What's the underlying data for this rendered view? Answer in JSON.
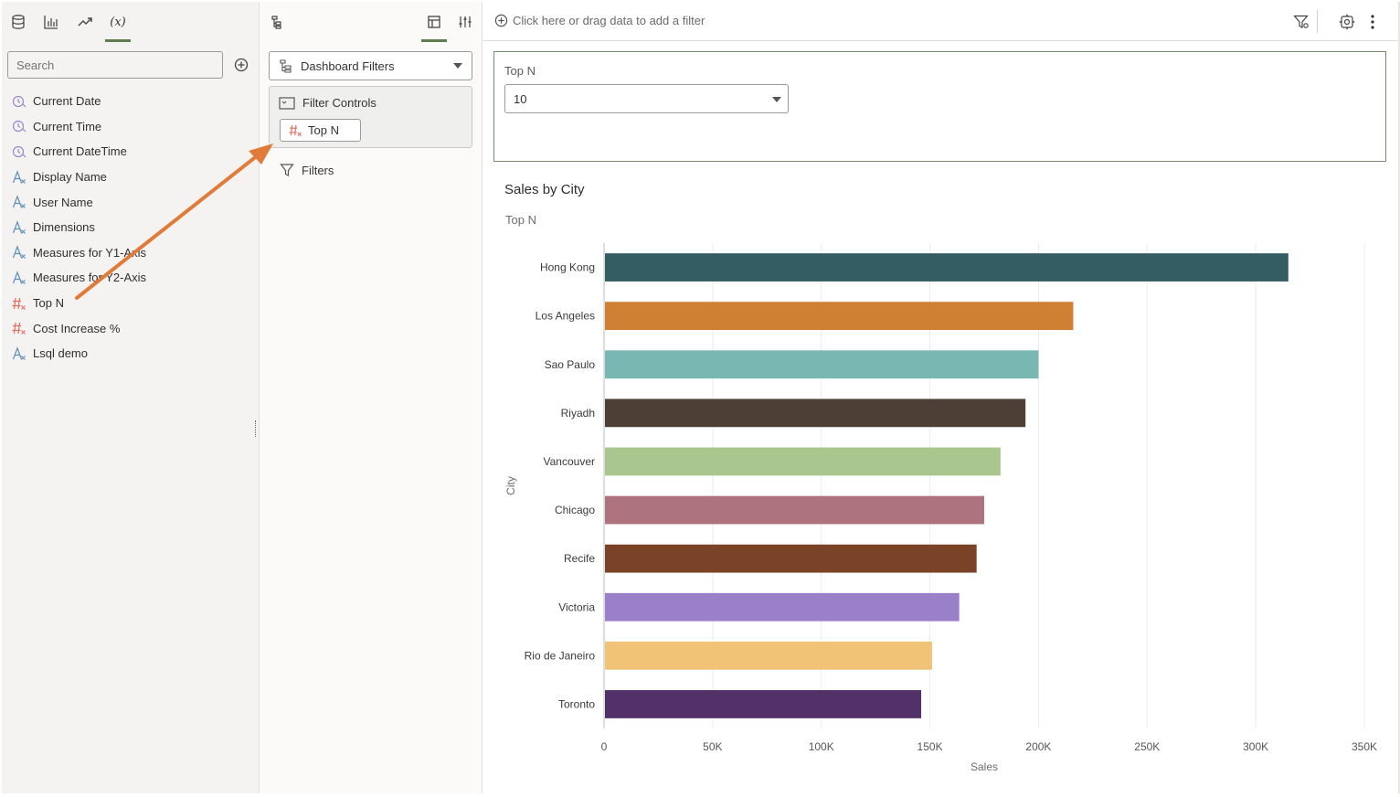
{
  "left_panel": {
    "tabs": [
      {
        "name": "data-tab",
        "icon": "database-icon"
      },
      {
        "name": "visualizations-tab",
        "icon": "bar-chart-icon"
      },
      {
        "name": "analytics-tab",
        "icon": "trend-line-icon"
      },
      {
        "name": "variables-tab",
        "icon": "variable-icon",
        "label": "(x)",
        "active": true
      }
    ],
    "search_placeholder": "Search",
    "items": [
      {
        "label": "Current Date",
        "icon": "clock-icon"
      },
      {
        "label": "Current Time",
        "icon": "clock-icon"
      },
      {
        "label": "Current DateTime",
        "icon": "clock-icon"
      },
      {
        "label": "Display Name",
        "icon": "text-variable-icon"
      },
      {
        "label": "User Name",
        "icon": "text-variable-icon"
      },
      {
        "label": "Dimensions",
        "icon": "text-variable-icon"
      },
      {
        "label": "Measures for Y1-Axis",
        "icon": "text-variable-icon"
      },
      {
        "label": "Measures for Y2-Axis",
        "icon": "text-variable-icon"
      },
      {
        "label": "Top N",
        "icon": "numeric-variable-icon"
      },
      {
        "label": "Cost Increase %",
        "icon": "numeric-variable-icon"
      },
      {
        "label": "Lsql demo",
        "icon": "text-variable-icon"
      }
    ]
  },
  "middle_panel": {
    "selector_label": "Dashboard Filters",
    "filter_controls_label": "Filter Controls",
    "filter_chip_label": "Top N",
    "filters_label": "Filters"
  },
  "main": {
    "filter_bar_hint": "Click here or drag data to add a filter",
    "filter_viz": {
      "label": "Top N",
      "value": "10"
    },
    "chart_subtitle": "Top N"
  },
  "colors": {
    "accent_green": "#5f7d4f",
    "annotation_arrow": "#e07b39",
    "numeric_icon": "#e07060",
    "text_icon": "#5b8fb9",
    "clock_icon": "#9b86c9"
  },
  "chart_data": {
    "type": "bar",
    "orientation": "horizontal",
    "title": "Sales by City",
    "xlabel": "Sales",
    "ylabel": "City",
    "xlim": [
      0,
      350000
    ],
    "x_ticks": [
      0,
      50000,
      100000,
      150000,
      200000,
      250000,
      300000,
      350000
    ],
    "x_tick_labels": [
      "0",
      "50K",
      "100K",
      "150K",
      "200K",
      "250K",
      "300K",
      "350K"
    ],
    "grid": true,
    "categories": [
      "Hong Kong",
      "Los Angeles",
      "Sao Paulo",
      "Riyadh",
      "Vancouver",
      "Chicago",
      "Recife",
      "Victoria",
      "Rio de Janeiro",
      "Toronto"
    ],
    "values": [
      315000,
      216000,
      200000,
      194000,
      182500,
      175000,
      171500,
      163500,
      151000,
      146000
    ],
    "colors": [
      "#335c63",
      "#d08032",
      "#79b7b3",
      "#4c3f36",
      "#a8c68e",
      "#ad747f",
      "#7a4226",
      "#9a80c8",
      "#f1c377",
      "#513168"
    ]
  }
}
